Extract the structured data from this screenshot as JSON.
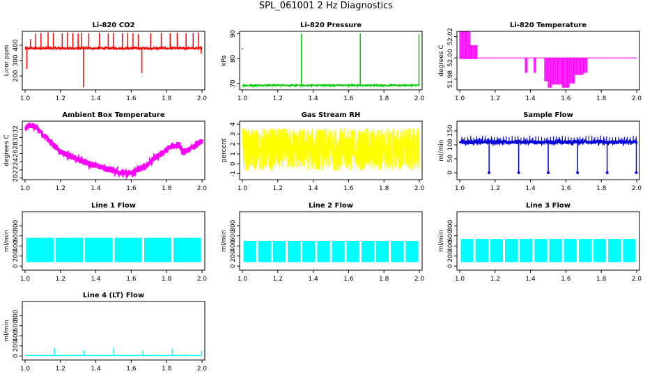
{
  "page": {
    "title": "SPL_061001  2 Hz Diagnostics"
  },
  "chart_data": [
    {
      "id": "co2",
      "type": "line",
      "title": "Li-820 CO2",
      "ylabel": "Licor ppm",
      "xlabel": "",
      "color": "#ff0000",
      "xlim": [
        1.0,
        2.0
      ],
      "ylim": [
        110,
        490
      ],
      "xticks": [
        "1.0",
        "1.2",
        "1.4",
        "1.6",
        "1.8",
        "2.0"
      ],
      "yticks": [
        200,
        300,
        400
      ],
      "baseline": 380,
      "noise": 8,
      "spikes": [
        [
          1.01,
          245
        ],
        [
          1.03,
          440
        ],
        [
          1.06,
          475
        ],
        [
          1.09,
          480
        ],
        [
          1.13,
          485
        ],
        [
          1.16,
          480
        ],
        [
          1.21,
          478
        ],
        [
          1.24,
          482
        ],
        [
          1.27,
          478
        ],
        [
          1.3,
          475
        ],
        [
          1.32,
          480
        ],
        [
          1.33,
          125
        ],
        [
          1.36,
          478
        ],
        [
          1.42,
          480
        ],
        [
          1.47,
          478
        ],
        [
          1.5,
          480
        ],
        [
          1.55,
          478
        ],
        [
          1.58,
          480
        ],
        [
          1.61,
          478
        ],
        [
          1.64,
          472
        ],
        [
          1.66,
          218
        ],
        [
          1.71,
          478
        ],
        [
          1.77,
          480
        ],
        [
          1.82,
          478
        ],
        [
          1.86,
          480
        ],
        [
          1.91,
          478
        ],
        [
          1.95,
          480
        ],
        [
          1.98,
          482
        ],
        [
          1.995,
          345
        ]
      ]
    },
    {
      "id": "pressure",
      "type": "line",
      "title": "Li-820 Pressure",
      "ylabel": "kPa",
      "xlabel": "",
      "color": "#00cc00",
      "xlim": [
        1.0,
        2.0
      ],
      "ylim": [
        67.5,
        91
      ],
      "xticks": [
        "1.0",
        "1.2",
        "1.4",
        "1.6",
        "1.8",
        "2.0"
      ],
      "yticks": [
        70,
        80,
        90
      ],
      "baseline": 69.3,
      "noise": 0.3,
      "spikes": [
        [
          1.333,
          90
        ],
        [
          1.666,
          90.2
        ],
        [
          1.998,
          89.8
        ]
      ],
      "outliers": [
        [
          1.0,
          84
        ]
      ]
    },
    {
      "id": "li820temp",
      "type": "band",
      "title": "Li-820 Temperature",
      "ylabel": "degrees C",
      "xlabel": "",
      "color": "#ff00ff",
      "xlim": [
        1.0,
        2.0
      ],
      "ylim": [
        51.97,
        52.025
      ],
      "xticks": [
        "1.0",
        "1.2",
        "1.4",
        "1.6",
        "1.8",
        "2.0"
      ],
      "ytick_labels": [
        "51.98",
        "52.00",
        "52.02"
      ],
      "yticks": [
        51.98,
        52.0,
        52.02
      ],
      "baseline": 52.0,
      "segments": [
        [
          1.0,
          1.06,
          51.999,
          52.025
        ],
        [
          1.06,
          1.1,
          51.999,
          52.012
        ],
        [
          1.37,
          1.38,
          51.986,
          52.0
        ],
        [
          1.42,
          1.43,
          51.986,
          52.0
        ],
        [
          1.48,
          1.5,
          51.978,
          52.0
        ],
        [
          1.5,
          1.52,
          51.972,
          52.0
        ],
        [
          1.52,
          1.58,
          51.975,
          52.0
        ],
        [
          1.58,
          1.62,
          51.972,
          52.0
        ],
        [
          1.62,
          1.65,
          51.976,
          52.0
        ],
        [
          1.65,
          1.7,
          51.984,
          52.0
        ],
        [
          1.7,
          1.72,
          51.986,
          52.0
        ]
      ]
    },
    {
      "id": "boxtemp",
      "type": "line",
      "title": "Ambient Box Temperature",
      "ylabel": "degrees C",
      "xlabel": "",
      "color": "#ff00ff",
      "xlim": [
        1.0,
        2.0
      ],
      "ylim": [
        19.6,
        34
      ],
      "xticks": [
        "1.0",
        "1.2",
        "1.4",
        "1.6",
        "1.8",
        "2.0"
      ],
      "yticks": [
        20,
        22,
        24,
        26,
        28,
        30,
        32
      ],
      "curve": [
        [
          1.0,
          32
        ],
        [
          1.02,
          33
        ],
        [
          1.04,
          33
        ],
        [
          1.07,
          32
        ],
        [
          1.12,
          30
        ],
        [
          1.2,
          26.5
        ],
        [
          1.3,
          24.5
        ],
        [
          1.4,
          23
        ],
        [
          1.5,
          21.8
        ],
        [
          1.58,
          21
        ],
        [
          1.62,
          21.5
        ],
        [
          1.68,
          23
        ],
        [
          1.75,
          25.5
        ],
        [
          1.82,
          27.5
        ],
        [
          1.87,
          28.5
        ],
        [
          1.89,
          26.5
        ],
        [
          1.93,
          27
        ],
        [
          1.97,
          28.5
        ],
        [
          2.0,
          29
        ]
      ],
      "noise": 0.7
    },
    {
      "id": "rh",
      "type": "noise",
      "title": "Gas Stream RH",
      "ylabel": "percent",
      "xlabel": "",
      "color": "#ffff00",
      "xlim": [
        1.0,
        2.0
      ],
      "ylim": [
        -1.6,
        4.3
      ],
      "xticks": [
        "1.0",
        "1.2",
        "1.4",
        "1.6",
        "1.8",
        "2.0"
      ],
      "yticks": [
        -1,
        0,
        1,
        2,
        3,
        4
      ],
      "band_low": -0.7,
      "band_high": 3.6
    },
    {
      "id": "sampleflow",
      "type": "line",
      "title": "Sample Flow",
      "ylabel": "ml/min",
      "xlabel": "",
      "color": "#0000dd",
      "xlim": [
        1.0,
        2.0
      ],
      "ylim": [
        -25,
        185
      ],
      "xticks": [
        "1.0",
        "1.2",
        "1.4",
        "1.6",
        "1.8",
        "2.0"
      ],
      "yticks": [
        0,
        50,
        100,
        150
      ],
      "baseline": 110,
      "noise": 5,
      "dips": [
        1.166,
        1.333,
        1.5,
        1.666,
        1.833,
        1.998
      ]
    },
    {
      "id": "line1",
      "type": "block",
      "title": "Line 1 Flow",
      "ylabel": "ml/min",
      "xlabel": "",
      "color": "#00ffff",
      "xlim": [
        1.0,
        2.0
      ],
      "ylim": [
        -80,
        1080
      ],
      "xticks": [
        "1.0",
        "1.2",
        "1.4",
        "1.6",
        "1.8",
        "2.0"
      ],
      "yticks": [
        0,
        200,
        400,
        600,
        800
      ],
      "low": 80,
      "high": 560,
      "gaps": [
        1.167,
        1.333,
        1.5,
        1.667,
        1.833
      ]
    },
    {
      "id": "line2",
      "type": "block",
      "title": "Line 2 Flow",
      "ylabel": "ml/min",
      "xlabel": "",
      "color": "#00ffff",
      "xlim": [
        1.0,
        2.0
      ],
      "ylim": [
        -80,
        1080
      ],
      "xticks": [
        "1.0",
        "1.2",
        "1.4",
        "1.6",
        "1.8",
        "2.0"
      ],
      "yticks": [
        0,
        200,
        400,
        600,
        800
      ],
      "low": 80,
      "high": 500,
      "gaps": [
        1.083,
        1.167,
        1.25,
        1.333,
        1.417,
        1.5,
        1.583,
        1.667,
        1.75,
        1.833,
        1.917
      ]
    },
    {
      "id": "line3",
      "type": "block",
      "title": "Line 3 Flow",
      "ylabel": "ml/min",
      "xlabel": "",
      "color": "#00ffff",
      "xlim": [
        1.0,
        2.0
      ],
      "ylim": [
        -80,
        1080
      ],
      "xticks": [
        "1.0",
        "1.2",
        "1.4",
        "1.6",
        "1.8",
        "2.0"
      ],
      "yticks": [
        0,
        200,
        400,
        600,
        800
      ],
      "low": 80,
      "high": 540,
      "gaps": [
        1.083,
        1.167,
        1.25,
        1.333,
        1.417,
        1.5,
        1.583,
        1.667,
        1.75,
        1.833,
        1.917
      ]
    },
    {
      "id": "line4",
      "type": "line",
      "title": "Line 4 (LT) Flow",
      "ylabel": "ml/min",
      "xlabel": "",
      "color": "#00ffff",
      "xlim": [
        1.0,
        2.0
      ],
      "ylim": [
        -80,
        1080
      ],
      "xticks": [
        "1.0",
        "1.2",
        "1.4",
        "1.6",
        "1.8",
        "2.0"
      ],
      "yticks": [
        0,
        200,
        400,
        600,
        800
      ],
      "baseline": 10,
      "noise": 2,
      "spikes": [
        [
          1.166,
          150
        ],
        [
          1.333,
          110
        ],
        [
          1.5,
          150
        ],
        [
          1.666,
          110
        ],
        [
          1.833,
          150
        ],
        [
          1.998,
          110
        ]
      ]
    }
  ]
}
